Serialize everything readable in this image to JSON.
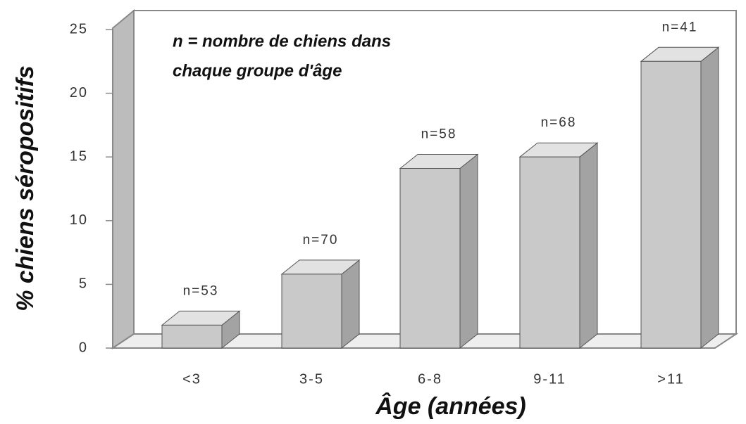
{
  "chart_data": {
    "type": "bar3d",
    "note": [
      "n = nombre de chiens dans",
      "chaque groupe d'âge"
    ],
    "xlabel": "Âge (années)",
    "ylabel": "% chiens séropositifs",
    "categories": [
      "<3",
      "3-5",
      "6-8",
      "9-11",
      ">11"
    ],
    "values": [
      1.8,
      5.8,
      14.1,
      15.0,
      22.5
    ],
    "bar_labels": [
      "n=53",
      "n=70",
      "n=58",
      "n=68",
      "n=41"
    ],
    "color": "#c9c9c9",
    "ylim": [
      0,
      25
    ],
    "yticks": [
      0,
      5,
      10,
      15,
      20,
      25
    ]
  }
}
